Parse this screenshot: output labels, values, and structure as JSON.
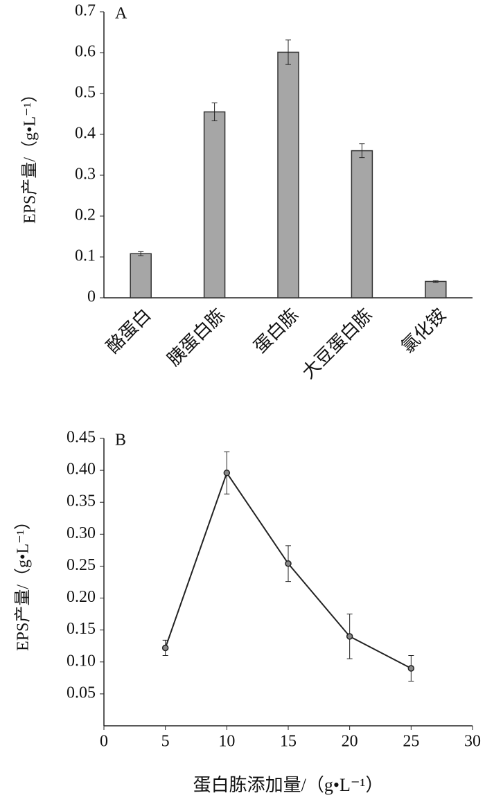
{
  "chart_data": [
    {
      "type": "bar",
      "panel_label": "A",
      "y_label": "EPS产量/（g•L⁻¹）",
      "categories": [
        "酪蛋白",
        "胰蛋白胨",
        "蛋白胨",
        "大豆蛋白胨",
        "氯化铵"
      ],
      "values": [
        0.108,
        0.455,
        0.601,
        0.36,
        0.04
      ],
      "errors": [
        0.005,
        0.022,
        0.03,
        0.017,
        0.002
      ],
      "color": "#a6a6a6",
      "ylim": [
        0,
        0.7
      ],
      "yticks": [
        0,
        0.1,
        0.2,
        0.3,
        0.4,
        0.5,
        0.6,
        0.7
      ]
    },
    {
      "type": "line",
      "panel_label": "B",
      "y_label": "EPS产量/（g•L⁻¹）",
      "x_label": "蛋白胨添加量/（g•L⁻¹）",
      "x": [
        5,
        10,
        15,
        20,
        25
      ],
      "values": [
        0.122,
        0.396,
        0.254,
        0.14,
        0.09
      ],
      "errors": [
        0.012,
        0.033,
        0.028,
        0.035,
        0.02
      ],
      "color": "#333333",
      "xlim": [
        0,
        30
      ],
      "xticks": [
        0,
        5,
        10,
        15,
        20,
        25,
        30
      ],
      "ylim": [
        0,
        0.45
      ],
      "yticks": [
        0.05,
        {
          "value": 0.1,
          "label": "0.10"
        },
        0.15,
        {
          "value": 0.2,
          "label": "0.20"
        },
        0.25,
        {
          "value": 0.3,
          "label": "0.30"
        },
        0.35,
        {
          "value": 0.4,
          "label": "0.40"
        },
        0.45
      ]
    }
  ]
}
